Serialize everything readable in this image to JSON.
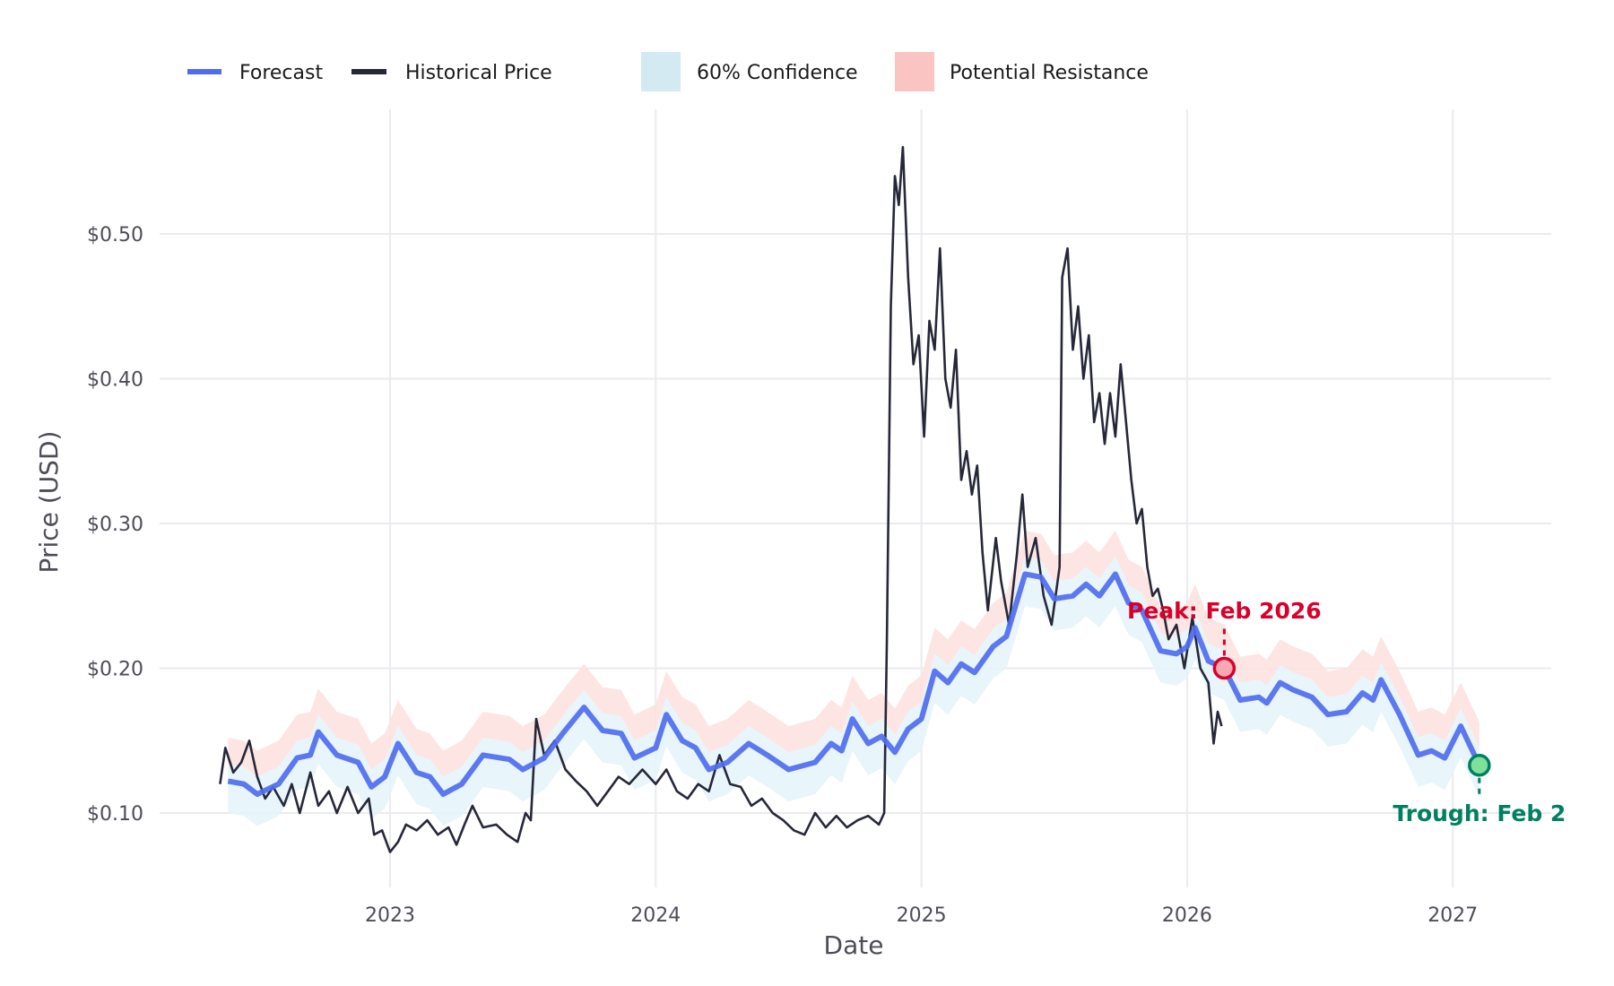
{
  "chart_data": {
    "type": "line",
    "title": "",
    "xlabel": "Date",
    "ylabel": "Price (USD)",
    "xlim": [
      2022.1,
      2027.4
    ],
    "ylim": [
      0.045,
      0.585
    ],
    "grid": true,
    "legend_position": "top-left",
    "x_ticks": [
      {
        "value": 2023,
        "label": "2023"
      },
      {
        "value": 2024,
        "label": "2024"
      },
      {
        "value": 2025,
        "label": "2025"
      },
      {
        "value": 2026,
        "label": "2026"
      },
      {
        "value": 2027,
        "label": "2027"
      }
    ],
    "y_ticks": [
      {
        "value": 0.1,
        "label": "$0.10"
      },
      {
        "value": 0.2,
        "label": "$0.20"
      },
      {
        "value": 0.3,
        "label": "$0.30"
      },
      {
        "value": 0.4,
        "label": "$0.40"
      },
      {
        "value": 0.5,
        "label": "$0.50"
      }
    ],
    "legend": [
      {
        "label": "Forecast",
        "kind": "line",
        "color": "#4f6cf0"
      },
      {
        "label": "Historical Price",
        "kind": "line",
        "color": "#262839"
      },
      {
        "label": "60% Confidence",
        "kind": "box",
        "color": "#d3eaf2"
      },
      {
        "label": "Potential Resistance",
        "kind": "box",
        "color": "#f9c4c2"
      }
    ],
    "colors": {
      "forecast": "#4f6cf0",
      "historical": "#262839",
      "confidence": "#e6f4f9",
      "resistance": "#fde0df",
      "peak": "#d9002b",
      "trough": "#008060"
    },
    "confidence_band_offsets": {
      "lower": -0.022,
      "upper": 0.012
    },
    "resistance_band_offsets": {
      "lower": 0.012,
      "upper": 0.03
    },
    "series": [
      {
        "name": "Historical Price",
        "points": [
          [
            2022.36,
            0.12
          ],
          [
            2022.38,
            0.145
          ],
          [
            2022.41,
            0.128
          ],
          [
            2022.44,
            0.135
          ],
          [
            2022.47,
            0.15
          ],
          [
            2022.5,
            0.125
          ],
          [
            2022.53,
            0.11
          ],
          [
            2022.56,
            0.118
          ],
          [
            2022.6,
            0.105
          ],
          [
            2022.63,
            0.12
          ],
          [
            2022.66,
            0.1
          ],
          [
            2022.7,
            0.128
          ],
          [
            2022.73,
            0.105
          ],
          [
            2022.77,
            0.115
          ],
          [
            2022.8,
            0.1
          ],
          [
            2022.84,
            0.118
          ],
          [
            2022.88,
            0.1
          ],
          [
            2022.92,
            0.11
          ],
          [
            2022.94,
            0.085
          ],
          [
            2022.97,
            0.088
          ],
          [
            2023.0,
            0.073
          ],
          [
            2023.03,
            0.08
          ],
          [
            2023.06,
            0.092
          ],
          [
            2023.1,
            0.088
          ],
          [
            2023.14,
            0.095
          ],
          [
            2023.18,
            0.085
          ],
          [
            2023.22,
            0.09
          ],
          [
            2023.25,
            0.078
          ],
          [
            2023.28,
            0.092
          ],
          [
            2023.31,
            0.105
          ],
          [
            2023.35,
            0.09
          ],
          [
            2023.4,
            0.092
          ],
          [
            2023.44,
            0.085
          ],
          [
            2023.48,
            0.08
          ],
          [
            2023.51,
            0.1
          ],
          [
            2023.53,
            0.095
          ],
          [
            2023.55,
            0.165
          ],
          [
            2023.58,
            0.14
          ],
          [
            2023.62,
            0.15
          ],
          [
            2023.66,
            0.13
          ],
          [
            2023.7,
            0.122
          ],
          [
            2023.74,
            0.115
          ],
          [
            2023.78,
            0.105
          ],
          [
            2023.82,
            0.115
          ],
          [
            2023.86,
            0.125
          ],
          [
            2023.9,
            0.12
          ],
          [
            2023.95,
            0.13
          ],
          [
            2024.0,
            0.12
          ],
          [
            2024.04,
            0.13
          ],
          [
            2024.08,
            0.115
          ],
          [
            2024.12,
            0.11
          ],
          [
            2024.16,
            0.12
          ],
          [
            2024.2,
            0.115
          ],
          [
            2024.24,
            0.14
          ],
          [
            2024.28,
            0.12
          ],
          [
            2024.32,
            0.118
          ],
          [
            2024.36,
            0.105
          ],
          [
            2024.4,
            0.11
          ],
          [
            2024.44,
            0.1
          ],
          [
            2024.48,
            0.095
          ],
          [
            2024.52,
            0.088
          ],
          [
            2024.56,
            0.085
          ],
          [
            2024.6,
            0.1
          ],
          [
            2024.64,
            0.09
          ],
          [
            2024.68,
            0.098
          ],
          [
            2024.72,
            0.09
          ],
          [
            2024.76,
            0.095
          ],
          [
            2024.8,
            0.098
          ],
          [
            2024.84,
            0.092
          ],
          [
            2024.86,
            0.1
          ],
          [
            2024.87,
            0.22
          ],
          [
            2024.885,
            0.45
          ],
          [
            2024.9,
            0.54
          ],
          [
            2024.915,
            0.52
          ],
          [
            2024.93,
            0.56
          ],
          [
            2024.95,
            0.47
          ],
          [
            2024.97,
            0.41
          ],
          [
            2024.99,
            0.43
          ],
          [
            2025.01,
            0.36
          ],
          [
            2025.03,
            0.44
          ],
          [
            2025.05,
            0.42
          ],
          [
            2025.07,
            0.49
          ],
          [
            2025.09,
            0.4
          ],
          [
            2025.11,
            0.38
          ],
          [
            2025.13,
            0.42
          ],
          [
            2025.15,
            0.33
          ],
          [
            2025.17,
            0.35
          ],
          [
            2025.19,
            0.32
          ],
          [
            2025.21,
            0.34
          ],
          [
            2025.23,
            0.28
          ],
          [
            2025.25,
            0.24
          ],
          [
            2025.28,
            0.29
          ],
          [
            2025.3,
            0.26
          ],
          [
            2025.33,
            0.23
          ],
          [
            2025.36,
            0.28
          ],
          [
            2025.38,
            0.32
          ],
          [
            2025.4,
            0.27
          ],
          [
            2025.43,
            0.29
          ],
          [
            2025.46,
            0.25
          ],
          [
            2025.49,
            0.23
          ],
          [
            2025.52,
            0.27
          ],
          [
            2025.53,
            0.47
          ],
          [
            2025.55,
            0.49
          ],
          [
            2025.57,
            0.42
          ],
          [
            2025.59,
            0.45
          ],
          [
            2025.61,
            0.4
          ],
          [
            2025.63,
            0.43
          ],
          [
            2025.65,
            0.37
          ],
          [
            2025.67,
            0.39
          ],
          [
            2025.69,
            0.355
          ],
          [
            2025.71,
            0.39
          ],
          [
            2025.73,
            0.36
          ],
          [
            2025.75,
            0.41
          ],
          [
            2025.77,
            0.37
          ],
          [
            2025.79,
            0.33
          ],
          [
            2025.81,
            0.3
          ],
          [
            2025.83,
            0.31
          ],
          [
            2025.85,
            0.27
          ],
          [
            2025.87,
            0.25
          ],
          [
            2025.89,
            0.255
          ],
          [
            2025.91,
            0.24
          ],
          [
            2025.93,
            0.22
          ],
          [
            2025.96,
            0.23
          ],
          [
            2025.99,
            0.2
          ],
          [
            2026.02,
            0.235
          ],
          [
            2026.05,
            0.2
          ],
          [
            2026.08,
            0.19
          ],
          [
            2026.1,
            0.148
          ],
          [
            2026.115,
            0.17
          ],
          [
            2026.13,
            0.16
          ]
        ]
      },
      {
        "name": "Forecast",
        "points": [
          [
            2022.39,
            0.122
          ],
          [
            2022.45,
            0.12
          ],
          [
            2022.5,
            0.113
          ],
          [
            2022.58,
            0.12
          ],
          [
            2022.65,
            0.138
          ],
          [
            2022.7,
            0.14
          ],
          [
            2022.73,
            0.156
          ],
          [
            2022.8,
            0.14
          ],
          [
            2022.88,
            0.135
          ],
          [
            2022.93,
            0.118
          ],
          [
            2022.98,
            0.125
          ],
          [
            2023.03,
            0.148
          ],
          [
            2023.1,
            0.128
          ],
          [
            2023.15,
            0.125
          ],
          [
            2023.2,
            0.113
          ],
          [
            2023.27,
            0.12
          ],
          [
            2023.35,
            0.14
          ],
          [
            2023.45,
            0.137
          ],
          [
            2023.5,
            0.13
          ],
          [
            2023.58,
            0.138
          ],
          [
            2023.65,
            0.155
          ],
          [
            2023.73,
            0.173
          ],
          [
            2023.8,
            0.157
          ],
          [
            2023.87,
            0.155
          ],
          [
            2023.92,
            0.138
          ],
          [
            2024.0,
            0.145
          ],
          [
            2024.04,
            0.168
          ],
          [
            2024.1,
            0.15
          ],
          [
            2024.15,
            0.145
          ],
          [
            2024.2,
            0.13
          ],
          [
            2024.27,
            0.135
          ],
          [
            2024.35,
            0.148
          ],
          [
            2024.42,
            0.14
          ],
          [
            2024.5,
            0.13
          ],
          [
            2024.6,
            0.135
          ],
          [
            2024.66,
            0.148
          ],
          [
            2024.7,
            0.143
          ],
          [
            2024.74,
            0.165
          ],
          [
            2024.8,
            0.148
          ],
          [
            2024.85,
            0.153
          ],
          [
            2024.9,
            0.142
          ],
          [
            2024.95,
            0.158
          ],
          [
            2025.0,
            0.165
          ],
          [
            2025.05,
            0.198
          ],
          [
            2025.1,
            0.19
          ],
          [
            2025.15,
            0.203
          ],
          [
            2025.2,
            0.197
          ],
          [
            2025.27,
            0.215
          ],
          [
            2025.32,
            0.222
          ],
          [
            2025.39,
            0.265
          ],
          [
            2025.45,
            0.263
          ],
          [
            2025.5,
            0.248
          ],
          [
            2025.57,
            0.25
          ],
          [
            2025.62,
            0.258
          ],
          [
            2025.67,
            0.25
          ],
          [
            2025.73,
            0.265
          ],
          [
            2025.78,
            0.245
          ],
          [
            2025.83,
            0.24
          ],
          [
            2025.9,
            0.212
          ],
          [
            2025.96,
            0.21
          ],
          [
            2026.0,
            0.215
          ],
          [
            2026.03,
            0.228
          ],
          [
            2026.08,
            0.205
          ],
          [
            2026.14,
            0.2
          ],
          [
            2026.2,
            0.178
          ],
          [
            2026.27,
            0.18
          ],
          [
            2026.3,
            0.176
          ],
          [
            2026.35,
            0.19
          ],
          [
            2026.4,
            0.185
          ],
          [
            2026.47,
            0.18
          ],
          [
            2026.53,
            0.168
          ],
          [
            2026.6,
            0.17
          ],
          [
            2026.66,
            0.183
          ],
          [
            2026.7,
            0.178
          ],
          [
            2026.73,
            0.192
          ],
          [
            2026.8,
            0.168
          ],
          [
            2026.87,
            0.14
          ],
          [
            2026.92,
            0.143
          ],
          [
            2026.97,
            0.138
          ],
          [
            2027.03,
            0.16
          ],
          [
            2027.1,
            0.133
          ]
        ]
      }
    ],
    "annotations": [
      {
        "name": "peak",
        "label": "Peak: Feb 2026",
        "x": 2026.14,
        "y": 0.2,
        "text_y": 0.24
      },
      {
        "name": "trough",
        "label": "Trough: Feb 2",
        "x": 2027.1,
        "y": 0.133,
        "text_y": 0.1
      }
    ]
  }
}
